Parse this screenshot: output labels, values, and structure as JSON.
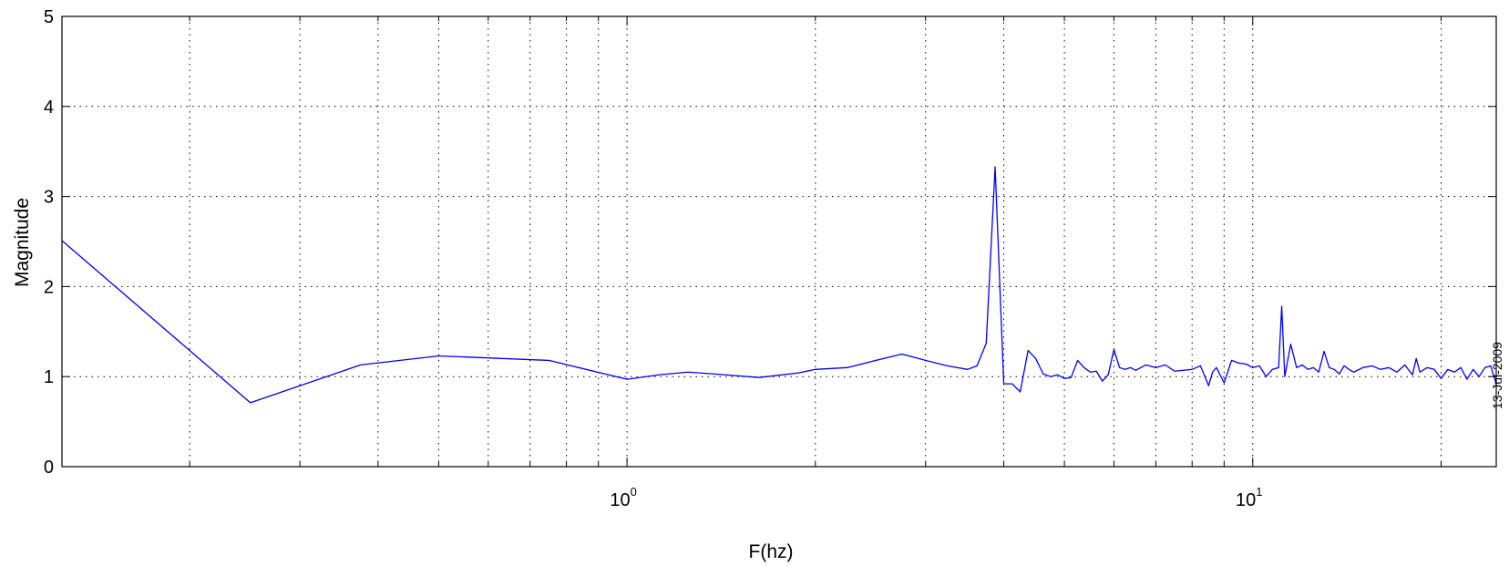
{
  "chart_data": {
    "type": "line",
    "title": "",
    "xlabel": "F(hz)",
    "ylabel": "Magnitude",
    "date_stamp": "13-Jul-2009",
    "xscale": "log",
    "xlim": [
      0.125,
      24.5
    ],
    "ylim": [
      0,
      5
    ],
    "grid": true,
    "y_ticks": [
      {
        "value": 0,
        "label": "0"
      },
      {
        "value": 1,
        "label": "1"
      },
      {
        "value": 2,
        "label": "2"
      },
      {
        "value": 3,
        "label": "3"
      },
      {
        "value": 4,
        "label": "4"
      },
      {
        "value": 5,
        "label": "5"
      }
    ],
    "x_ticks": [
      {
        "value": 1,
        "base": "10",
        "exp": "0"
      },
      {
        "value": 10,
        "base": "10",
        "exp": "1"
      }
    ],
    "x_minor_grid": [
      0.2,
      0.3,
      0.4,
      0.5,
      0.6,
      0.7,
      0.8,
      0.9,
      2,
      3,
      4,
      5,
      6,
      7,
      8,
      9,
      20
    ],
    "series": [
      {
        "name": "",
        "color": "#0000ff",
        "x": [
          0.125,
          0.25,
          0.375,
          0.5,
          0.75,
          1.0,
          1.125,
          1.25,
          1.375,
          1.625,
          1.875,
          2.0,
          2.25,
          2.5,
          2.75,
          3.0,
          3.25,
          3.5,
          3.625,
          3.75,
          3.875,
          4.0,
          4.125,
          4.25,
          4.375,
          4.5,
          4.625,
          4.75,
          4.875,
          5.0,
          5.125,
          5.25,
          5.375,
          5.5,
          5.625,
          5.75,
          5.875,
          6.0,
          6.125,
          6.25,
          6.375,
          6.5,
          6.75,
          7.0,
          7.25,
          7.5,
          7.75,
          8.0,
          8.25,
          8.5,
          8.625,
          8.75,
          9.0,
          9.25,
          9.5,
          9.75,
          10.0,
          10.25,
          10.5,
          10.75,
          11.0,
          11.125,
          11.25,
          11.5,
          11.75,
          12.0,
          12.25,
          12.5,
          12.75,
          13.0,
          13.25,
          13.5,
          13.75,
          14.0,
          14.25,
          14.5,
          15.0,
          15.5,
          16.0,
          16.5,
          17.0,
          17.5,
          18.0,
          18.25,
          18.5,
          19.0,
          19.5,
          20.0,
          20.5,
          21.0,
          21.5,
          22.0,
          22.5,
          23.0,
          23.5,
          24.0,
          24.5
        ],
        "y": [
          2.51,
          0.71,
          1.13,
          1.23,
          1.18,
          0.97,
          1.02,
          1.05,
          1.03,
          0.99,
          1.04,
          1.08,
          1.1,
          1.18,
          1.25,
          1.18,
          1.12,
          1.08,
          1.12,
          1.37,
          3.33,
          0.92,
          0.92,
          0.83,
          1.29,
          1.2,
          1.03,
          1.0,
          1.02,
          0.98,
          0.99,
          1.18,
          1.1,
          1.05,
          1.06,
          0.95,
          1.02,
          1.3,
          1.1,
          1.08,
          1.1,
          1.07,
          1.13,
          1.1,
          1.13,
          1.06,
          1.07,
          1.08,
          1.12,
          0.9,
          1.05,
          1.1,
          0.93,
          1.18,
          1.15,
          1.14,
          1.1,
          1.12,
          1.0,
          1.08,
          1.1,
          1.78,
          1.0,
          1.36,
          1.1,
          1.13,
          1.08,
          1.1,
          1.05,
          1.28,
          1.1,
          1.08,
          1.03,
          1.12,
          1.08,
          1.05,
          1.1,
          1.12,
          1.08,
          1.1,
          1.05,
          1.13,
          1.02,
          1.2,
          1.05,
          1.1,
          1.08,
          0.98,
          1.08,
          1.05,
          1.1,
          0.97,
          1.08,
          1.0,
          1.1,
          1.12,
          0.92
        ]
      }
    ]
  }
}
